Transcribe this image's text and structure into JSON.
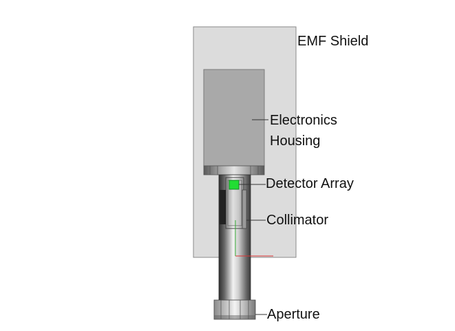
{
  "labels": {
    "emf_shield": "EMF Shield",
    "electronics_housing_line1": "Electronics",
    "electronics_housing_line2": "Housing",
    "detector_array": "Detector Array",
    "collimator": "Collimator",
    "aperture": "Aperture"
  },
  "colors": {
    "shield_fill": "#dcdcdc",
    "housing_fill": "#a9a9a9",
    "detector": "#22dd33",
    "leader_line": "#333333",
    "axis_red": "#dd3333",
    "axis_green": "#33aa33"
  }
}
